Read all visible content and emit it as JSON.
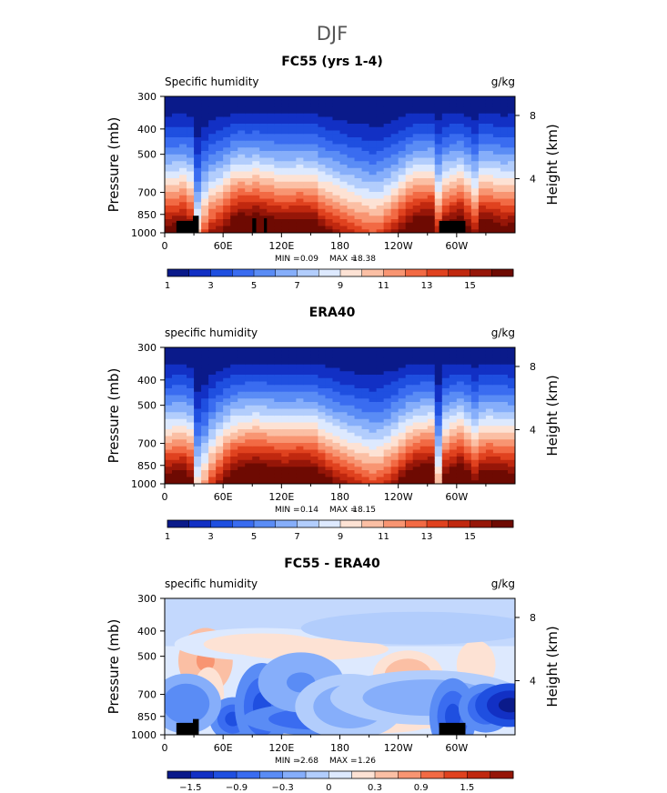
{
  "page_title": "DJF",
  "colors": {
    "neg": "#1a3fd6",
    "pos": "#d63a1a",
    "land": "#000000",
    "axis": "#000000"
  },
  "chart_data": [
    {
      "type": "heatmap",
      "title": "FC55 (yrs 1-4)",
      "left_label": "Specific humidity",
      "right_label": "g/kg",
      "ylabel": "Pressure (mb)",
      "ylabel_right": "Height (km)",
      "x_ticks": [
        "0",
        "60E",
        "120E",
        "180",
        "120W",
        "60W"
      ],
      "x_tick_lons": [
        0,
        60,
        120,
        180,
        240,
        300
      ],
      "xlim": [
        0,
        360
      ],
      "y_ticks": [
        "300",
        "400",
        "500",
        "700",
        "850",
        "1000"
      ],
      "y_tick_values": [
        300,
        400,
        500,
        700,
        850,
        1000
      ],
      "ylim": [
        300,
        1000
      ],
      "y_scale": "log",
      "right_ticks": [
        "8",
        "4"
      ],
      "right_tick_pressures": [
        355,
        620
      ],
      "min_label": "MIN =",
      "min_value": "0.09",
      "max_label": "MAX =",
      "max_value": "18.38",
      "colorbar": {
        "ticks": [
          "1",
          "3",
          "5",
          "7",
          "9",
          "11",
          "13",
          "15"
        ],
        "colors": [
          "#0a1a8a",
          "#1230c4",
          "#1f4fe0",
          "#3a6cf0",
          "#5a8cf5",
          "#86aefa",
          "#b2cdfc",
          "#dde9fe",
          "#fde2d4",
          "#fbbfa4",
          "#f89572",
          "#f26a44",
          "#e0421f",
          "#c0280f",
          "#961608",
          "#6e0a02"
        ]
      },
      "profile": [
        0.38,
        0.39,
        0.41,
        0.36,
        0.05,
        0.19,
        0.28,
        0.31,
        0.37,
        0.45,
        0.48,
        0.47,
        0.49,
        0.46,
        0.45,
        0.43,
        0.42,
        0.43,
        0.44,
        0.43,
        0.42,
        0.36,
        0.33,
        0.3,
        0.27,
        0.24,
        0.22,
        0.2,
        0.18,
        0.19,
        0.23,
        0.28,
        0.34,
        0.41,
        0.45,
        0.46,
        0.47,
        0.26,
        0.39,
        0.43,
        0.46,
        0.38,
        0.29,
        0.43,
        0.42,
        0.4,
        0.38,
        0.39
      ]
    },
    {
      "type": "heatmap",
      "title": "ERA40",
      "left_label": "specific humidity",
      "right_label": "g/kg",
      "ylabel": "Pressure (mb)",
      "ylabel_right": "Height (km)",
      "x_ticks": [
        "0",
        "60E",
        "120E",
        "180",
        "120W",
        "60W"
      ],
      "x_tick_lons": [
        0,
        60,
        120,
        180,
        240,
        300
      ],
      "xlim": [
        0,
        360
      ],
      "y_ticks": [
        "300",
        "400",
        "500",
        "700",
        "850",
        "1000"
      ],
      "y_tick_values": [
        300,
        400,
        500,
        700,
        850,
        1000
      ],
      "ylim": [
        300,
        1000
      ],
      "y_scale": "log",
      "right_ticks": [
        "8",
        "4"
      ],
      "right_tick_pressures": [
        355,
        620
      ],
      "min_label": "MIN =",
      "min_value": "0.14",
      "max_label": "MAX =",
      "max_value": "18.15",
      "colorbar": {
        "ticks": [
          "1",
          "3",
          "5",
          "7",
          "9",
          "11",
          "13",
          "15"
        ],
        "colors": [
          "#0a1a8a",
          "#1230c4",
          "#1f4fe0",
          "#3a6cf0",
          "#5a8cf5",
          "#86aefa",
          "#b2cdfc",
          "#dde9fe",
          "#fde2d4",
          "#fbbfa4",
          "#f89572",
          "#f26a44",
          "#e0421f",
          "#c0280f",
          "#961608",
          "#6e0a02"
        ]
      },
      "profile": [
        0.4,
        0.42,
        0.43,
        0.38,
        0.02,
        0.1,
        0.22,
        0.3,
        0.38,
        0.44,
        0.47,
        0.48,
        0.49,
        0.48,
        0.47,
        0.46,
        0.45,
        0.46,
        0.47,
        0.46,
        0.45,
        0.4,
        0.36,
        0.32,
        0.29,
        0.26,
        0.24,
        0.22,
        0.2,
        0.21,
        0.25,
        0.3,
        0.36,
        0.42,
        0.46,
        0.48,
        0.49,
        0.08,
        0.4,
        0.45,
        0.49,
        0.42,
        0.34,
        0.42,
        0.44,
        0.43,
        0.42,
        0.41
      ]
    },
    {
      "type": "heatmap",
      "title": "FC55 - ERA40",
      "left_label": "specific humidity",
      "right_label": "g/kg",
      "ylabel": "Pressure (mb)",
      "ylabel_right": "Height (km)",
      "x_ticks": [
        "0",
        "60E",
        "120E",
        "180",
        "120W",
        "60W"
      ],
      "x_tick_lons": [
        0,
        60,
        120,
        180,
        240,
        300
      ],
      "xlim": [
        0,
        360
      ],
      "y_ticks": [
        "300",
        "400",
        "500",
        "700",
        "850",
        "1000"
      ],
      "y_tick_values": [
        300,
        400,
        500,
        700,
        850,
        1000
      ],
      "ylim": [
        300,
        1000
      ],
      "y_scale": "log",
      "right_ticks": [
        "8",
        "4"
      ],
      "right_tick_pressures": [
        355,
        620
      ],
      "min_label": "MIN =",
      "min_value": "-2.68",
      "max_label": "MAX =",
      "max_value": "1.26",
      "colorbar": {
        "ticks": [
          "−1.5",
          "−0.9",
          "−0.3",
          "0",
          "0.3",
          "0.9",
          "1.5"
        ],
        "colors": [
          "#0a1a8a",
          "#1230c4",
          "#1f4fe0",
          "#3a6cf0",
          "#5a8cf5",
          "#86aefa",
          "#b2cdfc",
          "#dde9fe",
          "#fde2d4",
          "#fbbfa4",
          "#f89572",
          "#f26a44",
          "#e0421f",
          "#c0280f",
          "#961608"
        ]
      },
      "anomalies": [
        {
          "lon": 42,
          "p": 520,
          "rx": 14,
          "ry": 120,
          "v": 0.9
        },
        {
          "lon": 45,
          "p": 700,
          "rx": 8,
          "ry": 100,
          "v": 0.5
        },
        {
          "lon": 100,
          "p": 450,
          "rx": 45,
          "ry": 60,
          "v": 0.2
        },
        {
          "lon": 150,
          "p": 470,
          "rx": 40,
          "ry": 40,
          "v": 0.35
        },
        {
          "lon": 250,
          "p": 590,
          "rx": 18,
          "ry": 90,
          "v": 0.6
        },
        {
          "lon": 320,
          "p": 540,
          "rx": 10,
          "ry": 90,
          "v": 0.4
        },
        {
          "lon": 188,
          "p": 920,
          "rx": 50,
          "ry": 20,
          "v": 0.25
        },
        {
          "lon": 215,
          "p": 940,
          "rx": 25,
          "ry": 20,
          "v": 0.5
        },
        {
          "lon": 70,
          "p": 870,
          "rx": 12,
          "ry": 80,
          "v": -1.5
        },
        {
          "lon": 22,
          "p": 760,
          "rx": 18,
          "ry": 110,
          "v": -1.0
        },
        {
          "lon": 100,
          "p": 780,
          "rx": 14,
          "ry": 160,
          "v": -1.5
        },
        {
          "lon": 160,
          "p": 870,
          "rx": 40,
          "ry": 60,
          "v": -1.3
        },
        {
          "lon": 140,
          "p": 630,
          "rx": 22,
          "ry": 110,
          "v": -0.9
        },
        {
          "lon": 190,
          "p": 780,
          "rx": 28,
          "ry": 120,
          "v": -0.7
        },
        {
          "lon": 270,
          "p": 720,
          "rx": 50,
          "ry": 100,
          "v": -0.6
        },
        {
          "lon": 296,
          "p": 850,
          "rx": 12,
          "ry": 140,
          "v": -1.6
        },
        {
          "lon": 330,
          "p": 790,
          "rx": 14,
          "ry": 90,
          "v": -1.6
        },
        {
          "lon": 355,
          "p": 770,
          "rx": 18,
          "ry": 80,
          "v": -2.2
        },
        {
          "lon": 260,
          "p": 390,
          "rx": 60,
          "ry": 60,
          "v": -0.3
        }
      ]
    }
  ]
}
